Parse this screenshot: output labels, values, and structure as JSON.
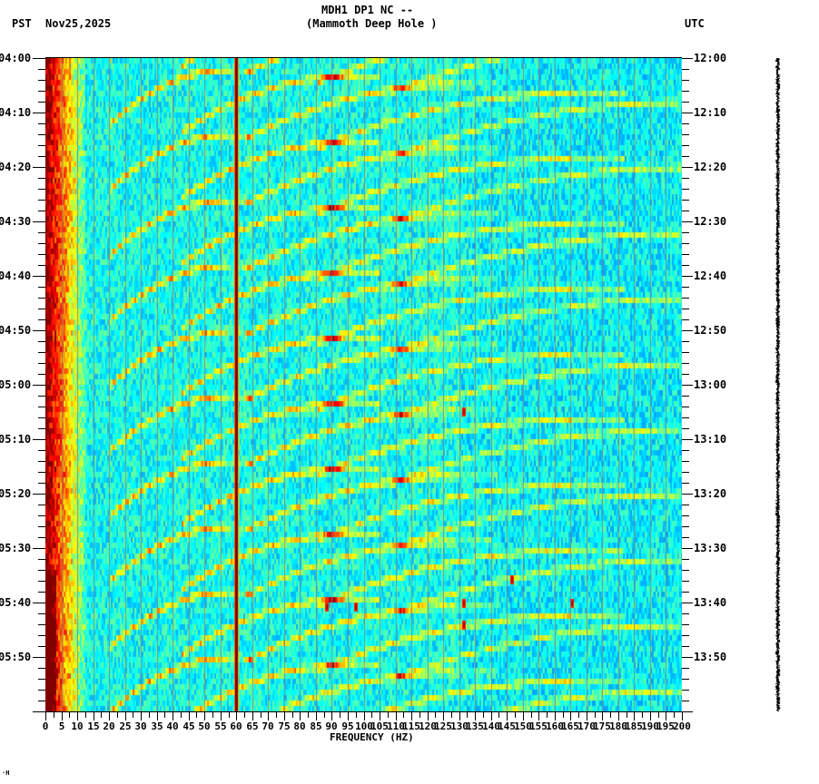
{
  "header": {
    "station": "MDH1 DP1 NC --",
    "site_name": "(Mammoth Deep Hole )",
    "left_timezone": "PST",
    "date": "Nov25,2025",
    "right_timezone": "UTC"
  },
  "axes": {
    "xlabel": "FREQUENCY (HZ)",
    "footer_mark": "·H"
  },
  "chart_data": {
    "type": "heatmap",
    "title": "MDH1 DP1 NC -- (Mammoth Deep Hole ) Nov25,2025",
    "xlabel": "FREQUENCY (HZ)",
    "ylabel_left": "PST",
    "ylabel_right": "UTC",
    "xlim": [
      0,
      200
    ],
    "x_ticks": [
      0,
      5,
      10,
      15,
      20,
      25,
      30,
      35,
      40,
      45,
      50,
      55,
      60,
      65,
      70,
      75,
      80,
      85,
      90,
      95,
      100,
      105,
      110,
      115,
      120,
      125,
      130,
      135,
      140,
      145,
      150,
      155,
      160,
      165,
      170,
      175,
      180,
      185,
      190,
      195,
      200
    ],
    "y_ticks_left": [
      "04:00",
      "04:10",
      "04:20",
      "04:30",
      "04:40",
      "04:50",
      "05:00",
      "05:10",
      "05:20",
      "05:30",
      "05:40",
      "05:50"
    ],
    "y_ticks_right": [
      "12:00",
      "12:10",
      "12:20",
      "12:30",
      "12:40",
      "12:50",
      "13:00",
      "13:10",
      "13:20",
      "13:30",
      "13:40",
      "13:50"
    ],
    "time_range_pst": [
      "04:00",
      "06:00"
    ],
    "time_range_utc": [
      "12:00",
      "14:00"
    ],
    "grid": "vertical every 5 Hz",
    "colormap": [
      "#00007f",
      "#0000ff",
      "#0080ff",
      "#00ffff",
      "#80ff80",
      "#ffff00",
      "#ff8000",
      "#ff0000",
      "#7f0000"
    ],
    "features": {
      "persistent_line_hz": 60,
      "high_energy_band_hz": [
        0,
        10
      ],
      "recurring_arcs": "gliding harmonic arcs repeating roughly every 6 minutes, sweeping from ~20 Hz upward toward ~130 Hz",
      "spot_events_hz": [
        88,
        97,
        131,
        146,
        165
      ]
    }
  }
}
